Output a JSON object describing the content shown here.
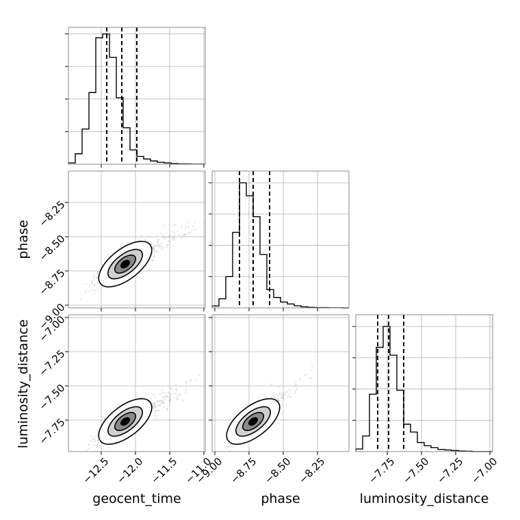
{
  "chart_data": {
    "type": "corner",
    "parameters": [
      "geocent_time",
      "phase",
      "luminosity_distance"
    ],
    "grid": true,
    "diagonal_histograms": [
      {
        "parameter": "geocent_time",
        "bin_edges": [
          -12.98,
          -12.88,
          -12.78,
          -12.68,
          -12.58,
          -12.48,
          -12.38,
          -12.28,
          -12.18,
          -12.08,
          -11.98,
          -11.88,
          -11.78,
          -11.68,
          -11.58,
          -11.48,
          -11.38,
          -11.28,
          -11.18,
          -11.08,
          -10.98
        ],
        "counts": [
          0.01,
          0.08,
          0.27,
          0.55,
          0.97,
          1.0,
          0.82,
          0.51,
          0.28,
          0.11,
          0.06,
          0.04,
          0.025,
          0.015,
          0.01,
          0.005,
          0.003,
          0.002,
          0.001,
          0.001
        ],
        "quantiles": [
          -12.42,
          -12.2,
          -11.98
        ]
      },
      {
        "parameter": "phase",
        "bin_edges": [
          -9.02,
          -8.97,
          -8.92,
          -8.87,
          -8.82,
          -8.77,
          -8.72,
          -8.67,
          -8.62,
          -8.57,
          -8.52,
          -8.47,
          -8.42,
          -8.37,
          -8.32,
          -8.27,
          -8.22,
          -8.17,
          -8.12,
          -8.07,
          -8.02
        ],
        "counts": [
          0.015,
          0.07,
          0.24,
          0.58,
          0.96,
          0.86,
          0.7,
          0.41,
          0.14,
          0.08,
          0.045,
          0.03,
          0.016,
          0.008,
          0.004,
          0.002,
          0.002,
          0.001,
          0.001,
          0.0
        ],
        "quantiles": [
          -8.82,
          -8.72,
          -8.6
        ]
      },
      {
        "parameter": "luminosity_distance",
        "bin_edges": [
          -7.98,
          -7.93,
          -7.88,
          -7.83,
          -7.78,
          -7.73,
          -7.68,
          -7.63,
          -7.58,
          -7.53,
          -7.48,
          -7.43,
          -7.38,
          -7.33,
          -7.28,
          -7.23,
          -7.18,
          -7.13,
          -7.08,
          -7.03,
          -6.98
        ],
        "counts": [
          0.02,
          0.12,
          0.44,
          0.8,
          0.96,
          0.74,
          0.47,
          0.21,
          0.15,
          0.07,
          0.045,
          0.03,
          0.016,
          0.012,
          0.008,
          0.004,
          0.003,
          0.0,
          0.0,
          0.0
        ],
        "quantiles": [
          -7.82,
          -7.74,
          -7.63
        ]
      }
    ],
    "joint_distributions": [
      {
        "x": "geocent_time",
        "y": "phase",
        "center": [
          -12.15,
          -8.7
        ],
        "spread": [
          0.2,
          0.07
        ],
        "correlation": 0.8
      },
      {
        "x": "geocent_time",
        "y": "luminosity_distance",
        "center": [
          -12.15,
          -7.76
        ],
        "spread": [
          0.2,
          0.07
        ],
        "correlation": 0.8
      },
      {
        "x": "phase",
        "y": "luminosity_distance",
        "center": [
          -8.72,
          -7.76
        ],
        "spread": [
          0.07,
          0.07
        ],
        "correlation": 0.85
      }
    ],
    "axes": {
      "geocent_time": {
        "range": [
          -12.98,
          -10.98
        ],
        "ticks": [
          -12.5,
          -12.0,
          -11.5,
          -11.0
        ],
        "tick_labels": [
          "−12.5",
          "−12.0",
          "−11.5",
          "−11.0"
        ],
        "label": "geocent_time"
      },
      "phase": {
        "range": [
          -9.02,
          -8.02
        ],
        "ticks": [
          -9.0,
          -8.75,
          -8.5,
          -8.25
        ],
        "tick_labels": [
          "−9.00",
          "−8.75",
          "−8.50",
          "−8.25"
        ],
        "label": "phase"
      },
      "luminosity_distance": {
        "range": [
          -7.98,
          -6.98
        ],
        "ticks": [
          -7.75,
          -7.5,
          -7.25,
          -7.0
        ],
        "tick_labels": [
          "−7.75",
          "−7.50",
          "−7.25",
          "−7.00"
        ],
        "label": "luminosity_distance"
      }
    }
  }
}
